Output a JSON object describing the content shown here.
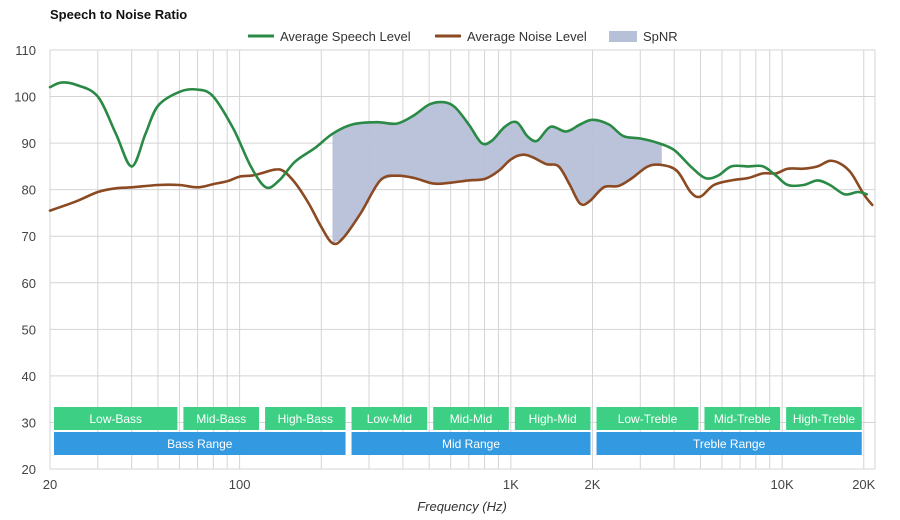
{
  "chart_data": {
    "type": "line",
    "title": "Speech to Noise Ratio",
    "xlabel": "Frequency (Hz)",
    "ylabel": "",
    "x_scale": "log",
    "xlim": [
      20,
      22000
    ],
    "ylim": [
      20,
      110
    ],
    "y_ticks": [
      20,
      30,
      40,
      50,
      60,
      70,
      80,
      90,
      100,
      110
    ],
    "x_ticks": [
      {
        "value": 20,
        "label": "20"
      },
      {
        "value": 100,
        "label": "100"
      },
      {
        "value": 1000,
        "label": "1K"
      },
      {
        "value": 2000,
        "label": "2K"
      },
      {
        "value": 10000,
        "label": "10K"
      },
      {
        "value": 20000,
        "label": "20K"
      }
    ],
    "grid": true,
    "legend_position": "top-center",
    "series": [
      {
        "name": "Average Speech Level",
        "color": "#2a8a45",
        "points": [
          [
            20,
            102
          ],
          [
            22,
            103
          ],
          [
            25,
            102.5
          ],
          [
            30,
            100
          ],
          [
            35,
            92
          ],
          [
            40,
            85
          ],
          [
            45,
            92
          ],
          [
            50,
            98
          ],
          [
            60,
            101
          ],
          [
            70,
            101.5
          ],
          [
            80,
            100
          ],
          [
            95,
            93
          ],
          [
            110,
            85
          ],
          [
            125,
            80.5
          ],
          [
            140,
            82
          ],
          [
            160,
            86
          ],
          [
            190,
            89
          ],
          [
            220,
            92
          ],
          [
            260,
            94
          ],
          [
            320,
            94.5
          ],
          [
            380,
            94.2
          ],
          [
            440,
            96
          ],
          [
            500,
            98.3
          ],
          [
            560,
            98.8
          ],
          [
            620,
            97.8
          ],
          [
            700,
            94
          ],
          [
            780,
            90
          ],
          [
            850,
            90.5
          ],
          [
            950,
            93.5
          ],
          [
            1050,
            94.5
          ],
          [
            1150,
            91.5
          ],
          [
            1250,
            90.5
          ],
          [
            1400,
            93.5
          ],
          [
            1600,
            92.5
          ],
          [
            1800,
            94
          ],
          [
            2000,
            95
          ],
          [
            2300,
            94
          ],
          [
            2600,
            91.5
          ],
          [
            3000,
            91
          ],
          [
            3500,
            90
          ],
          [
            4000,
            88.5
          ],
          [
            4600,
            85
          ],
          [
            5200,
            82.5
          ],
          [
            5800,
            83
          ],
          [
            6500,
            85
          ],
          [
            7500,
            85
          ],
          [
            8500,
            85
          ],
          [
            9500,
            83
          ],
          [
            10500,
            81
          ],
          [
            12000,
            81
          ],
          [
            13500,
            82
          ],
          [
            15000,
            81
          ],
          [
            17000,
            79
          ],
          [
            19000,
            79.5
          ],
          [
            20500,
            79
          ]
        ]
      },
      {
        "name": "Average Noise Level",
        "color": "#8b4a22",
        "points": [
          [
            20,
            75.5
          ],
          [
            25,
            77.5
          ],
          [
            30,
            79.5
          ],
          [
            35,
            80.3
          ],
          [
            40,
            80.5
          ],
          [
            50,
            81
          ],
          [
            60,
            81
          ],
          [
            70,
            80.5
          ],
          [
            80,
            81.2
          ],
          [
            90,
            81.8
          ],
          [
            100,
            82.8
          ],
          [
            110,
            83
          ],
          [
            120,
            83.5
          ],
          [
            135,
            84.3
          ],
          [
            145,
            84
          ],
          [
            160,
            81.5
          ],
          [
            180,
            77
          ],
          [
            200,
            72
          ],
          [
            220,
            68.5
          ],
          [
            240,
            69.5
          ],
          [
            280,
            75
          ],
          [
            330,
            82
          ],
          [
            380,
            83
          ],
          [
            440,
            82.5
          ],
          [
            520,
            81.3
          ],
          [
            600,
            81.5
          ],
          [
            700,
            82
          ],
          [
            800,
            82.3
          ],
          [
            900,
            84
          ],
          [
            1000,
            86.5
          ],
          [
            1100,
            87.5
          ],
          [
            1200,
            87
          ],
          [
            1350,
            85.5
          ],
          [
            1500,
            85
          ],
          [
            1650,
            81
          ],
          [
            1800,
            77
          ],
          [
            1950,
            77.5
          ],
          [
            2200,
            80.5
          ],
          [
            2500,
            80.8
          ],
          [
            2800,
            82.5
          ],
          [
            3200,
            85
          ],
          [
            3600,
            85.3
          ],
          [
            4100,
            84
          ],
          [
            4600,
            79.5
          ],
          [
            5000,
            78.5
          ],
          [
            5600,
            81
          ],
          [
            6500,
            82
          ],
          [
            7500,
            82.5
          ],
          [
            8500,
            83.5
          ],
          [
            9500,
            83.5
          ],
          [
            10500,
            84.5
          ],
          [
            12000,
            84.5
          ],
          [
            13500,
            85
          ],
          [
            15000,
            86.2
          ],
          [
            16500,
            85.5
          ],
          [
            18000,
            83.5
          ],
          [
            20000,
            79
          ],
          [
            21500,
            76.7
          ]
        ]
      },
      {
        "name": "SpNR",
        "color": "#b6c0d8",
        "x_range": [
          220,
          3600
        ]
      }
    ],
    "bands": [
      {
        "label": "Low-Bass",
        "x_range": [
          20,
          60
        ],
        "color": "#3dd084",
        "row": 1
      },
      {
        "label": "Mid-Bass",
        "x_range": [
          60,
          120
        ],
        "color": "#3dd084",
        "row": 1
      },
      {
        "label": "High-Bass",
        "x_range": [
          120,
          250
        ],
        "color": "#3dd084",
        "row": 1
      },
      {
        "label": "Low-Mid",
        "x_range": [
          250,
          500
        ],
        "color": "#3dd084",
        "row": 1
      },
      {
        "label": "Mid-Mid",
        "x_range": [
          500,
          1000
        ],
        "color": "#3dd084",
        "row": 1
      },
      {
        "label": "High-Mid",
        "x_range": [
          1000,
          2000
        ],
        "color": "#3dd084",
        "row": 1
      },
      {
        "label": "Low-Treble",
        "x_range": [
          2000,
          5000
        ],
        "color": "#3dd084",
        "row": 1
      },
      {
        "label": "Mid-Treble",
        "x_range": [
          5000,
          10000
        ],
        "color": "#3dd084",
        "row": 1
      },
      {
        "label": "High-Treble",
        "x_range": [
          10000,
          20000
        ],
        "color": "#3dd084",
        "row": 1
      },
      {
        "label": "Bass Range",
        "x_range": [
          20,
          250
        ],
        "color": "#3399e0",
        "row": 2
      },
      {
        "label": "Mid Range",
        "x_range": [
          250,
          2000
        ],
        "color": "#3399e0",
        "row": 2
      },
      {
        "label": "Treble Range",
        "x_range": [
          2000,
          20000
        ],
        "color": "#3399e0",
        "row": 2
      }
    ]
  }
}
